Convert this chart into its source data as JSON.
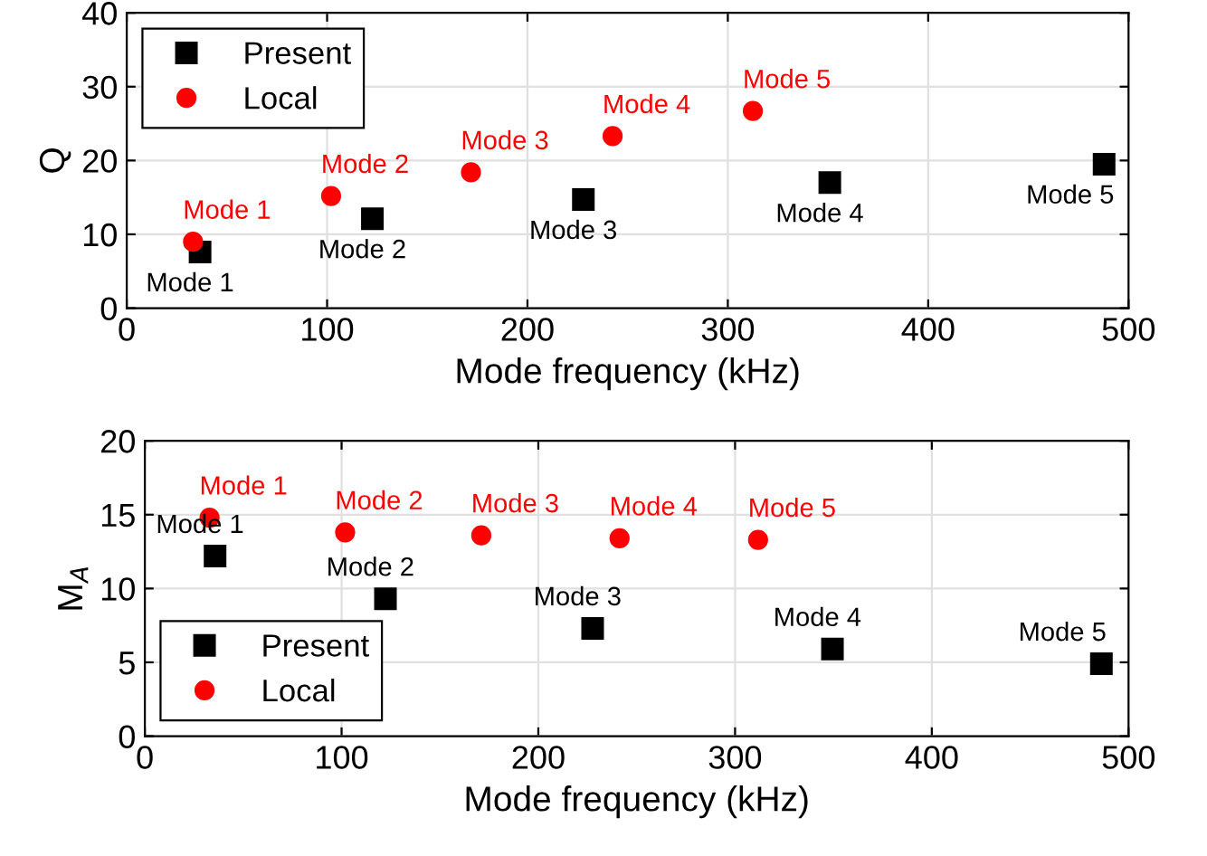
{
  "chart_data": [
    {
      "type": "scatter",
      "xlabel": "Mode frequency (kHz)",
      "ylabel": "Q",
      "xlim": [
        0,
        500
      ],
      "ylim": [
        0,
        40
      ],
      "xticks": [
        0,
        100,
        200,
        300,
        400,
        500
      ],
      "yticks": [
        0,
        10,
        20,
        30,
        40
      ],
      "grid": true,
      "legend": "top left",
      "series": [
        {
          "name": "Present",
          "color": "#000000",
          "marker": "square",
          "x": [
            36.6,
            122.6,
            227.9,
            350.9,
            487.8
          ],
          "values": [
            7.6,
            12.1,
            14.7,
            17.0,
            19.5
          ]
        },
        {
          "name": "Local",
          "color": "#ff0000",
          "marker": "circle",
          "x": [
            33.1,
            102,
            171.8,
            242.5,
            312.5
          ],
          "values": [
            9.0,
            15.2,
            18.4,
            23.3,
            26.7
          ]
        }
      ],
      "annotations": [
        {
          "text": "Mode 1",
          "x": 36.6,
          "y": 7.6
        },
        {
          "text": "Mode 2",
          "x": 122.6,
          "y": 12.1
        },
        {
          "text": "Mode 3",
          "x": 227.9,
          "y": 14.7
        },
        {
          "text": "Mode 4",
          "x": 350.9,
          "y": 17.0
        },
        {
          "text": "Mode 5",
          "x": 487.8,
          "y": 19.5
        },
        {
          "text": "Mode 1",
          "x": 33.1,
          "y": 9.0
        },
        {
          "text": "Mode 2",
          "x": 102,
          "y": 15.2
        },
        {
          "text": "Mode 3",
          "x": 171.8,
          "y": 18.4
        },
        {
          "text": "Mode 4",
          "x": 242.5,
          "y": 23.3
        },
        {
          "text": "Mode 5",
          "x": 312.5,
          "y": 26.7
        }
      ]
    },
    {
      "type": "scatter",
      "xlabel": "Mode frequency (kHz)",
      "ylabel": "M$_{A}$",
      "xlim": [
        0,
        500
      ],
      "ylim": [
        0,
        20
      ],
      "xticks": [
        0,
        100,
        200,
        300,
        400,
        500
      ],
      "yticks": [
        0,
        5,
        10,
        15,
        20
      ],
      "grid": true,
      "legend": "bottom left",
      "series": [
        {
          "name": "Present",
          "color": "#000000",
          "marker": "square",
          "x": [
            35.7,
            122.3,
            227.6,
            349.5,
            486.2
          ],
          "values": [
            12.2,
            9.3,
            7.3,
            5.9,
            4.9
          ]
        },
        {
          "name": "Local",
          "color": "#ff0000",
          "marker": "circle",
          "x": [
            32.9,
            101.8,
            171,
            241.3,
            311.7
          ],
          "values": [
            14.8,
            13.8,
            13.6,
            13.4,
            13.3
          ]
        }
      ],
      "annotations": [
        {
          "text": "Mode 1",
          "x": 35.7,
          "y": 12.2
        },
        {
          "text": "Mode 2",
          "x": 122.3,
          "y": 9.3
        },
        {
          "text": "Mode 3",
          "x": 227.6,
          "y": 7.3
        },
        {
          "text": "Mode 4",
          "x": 349.5,
          "y": 5.9
        },
        {
          "text": "Mode 5",
          "x": 486.2,
          "y": 4.9
        },
        {
          "text": "Mode 1",
          "x": 32.9,
          "y": 14.8
        },
        {
          "text": "Mode 2",
          "x": 101.8,
          "y": 13.8
        },
        {
          "text": "Mode 3",
          "x": 171,
          "y": 13.6
        },
        {
          "text": "Mode 4",
          "x": 241.3,
          "y": 13.4
        },
        {
          "text": "Mode 5",
          "x": 311.7,
          "y": 13.3
        }
      ]
    }
  ]
}
